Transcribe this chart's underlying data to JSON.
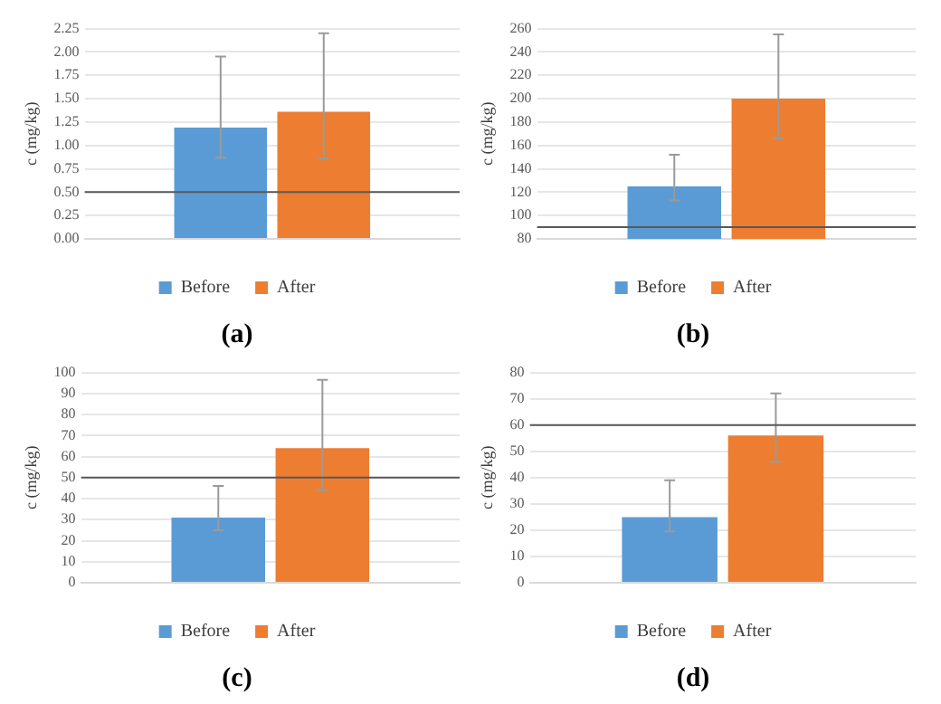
{
  "chart_data": [
    {
      "type": "bar",
      "title": "(a)",
      "ylabel": "c (mg/kg)",
      "categories": [
        null
      ],
      "series": [
        {
          "name": "Before",
          "color": "#5b9bd5",
          "values": [
            1.19
          ],
          "errors": [
            [
              0.87,
              1.95
            ]
          ]
        },
        {
          "name": "After",
          "color": "#ed7d31",
          "values": [
            1.36
          ],
          "errors": [
            [
              0.86,
              2.2
            ]
          ]
        }
      ],
      "ylim": [
        0,
        2.25
      ],
      "yticks": [
        {
          "value": 0,
          "label": "0.00"
        },
        {
          "value": 0.25,
          "label": "0.25"
        },
        {
          "value": 0.5,
          "label": "0.50"
        },
        {
          "value": 0.75,
          "label": "0.75"
        },
        {
          "value": 1,
          "label": "1.00"
        },
        {
          "value": 1.25,
          "label": "1.25"
        },
        {
          "value": 1.5,
          "label": "1.50"
        },
        {
          "value": 1.75,
          "label": "1.75"
        },
        {
          "value": 2,
          "label": "2.00"
        },
        {
          "value": 2.25,
          "label": "2.25"
        }
      ],
      "ref_lines": [
        {
          "axis": "y",
          "value": 0.5,
          "color": "#595959"
        }
      ],
      "grid": "y",
      "legend": "bottom"
    },
    {
      "type": "bar",
      "title": "(b)",
      "ylabel": "c (mg/kg)",
      "categories": [
        null
      ],
      "series": [
        {
          "name": "Before",
          "color": "#5b9bd5",
          "values": [
            125
          ],
          "errors": [
            [
              113,
              152
            ]
          ]
        },
        {
          "name": "After",
          "color": "#ed7d31",
          "values": [
            200
          ],
          "errors": [
            [
              166,
              255
            ]
          ]
        }
      ],
      "ylim": [
        80,
        260
      ],
      "yticks": [
        80,
        100,
        120,
        140,
        160,
        180,
        200,
        220,
        240,
        260
      ],
      "ref_lines": [
        {
          "axis": "y",
          "value": 90,
          "color": "#595959"
        }
      ],
      "grid": "y",
      "legend": "bottom"
    },
    {
      "type": "bar",
      "title": "(c)",
      "ylabel": "c (mg/kg)",
      "categories": [
        null
      ],
      "series": [
        {
          "name": "Before",
          "color": "#5b9bd5",
          "values": [
            31
          ],
          "errors": [
            [
              25,
              46
            ]
          ]
        },
        {
          "name": "After",
          "color": "#ed7d31",
          "values": [
            64
          ],
          "errors": [
            [
              44,
              96.5
            ]
          ]
        }
      ],
      "ylim": [
        0,
        100
      ],
      "yticks": [
        0,
        10,
        20,
        30,
        40,
        50,
        60,
        70,
        80,
        90,
        100
      ],
      "ref_lines": [
        {
          "axis": "y",
          "value": 50,
          "color": "#595959"
        }
      ],
      "grid": "y",
      "legend": "bottom"
    },
    {
      "type": "bar",
      "title": "(d)",
      "ylabel": "c (mg/kg)",
      "categories": [
        null
      ],
      "series": [
        {
          "name": "Before",
          "color": "#5b9bd5",
          "values": [
            25
          ],
          "errors": [
            [
              19.5,
              39
            ]
          ]
        },
        {
          "name": "After",
          "color": "#ed7d31",
          "values": [
            56
          ],
          "errors": [
            [
              46,
              72
            ]
          ]
        }
      ],
      "ylim": [
        0,
        80
      ],
      "yticks": [
        0,
        10,
        20,
        30,
        40,
        50,
        60,
        70,
        80
      ],
      "ref_lines": [
        {
          "axis": "y",
          "value": 60,
          "color": "#595959"
        }
      ],
      "grid": "y",
      "legend": "bottom"
    }
  ]
}
